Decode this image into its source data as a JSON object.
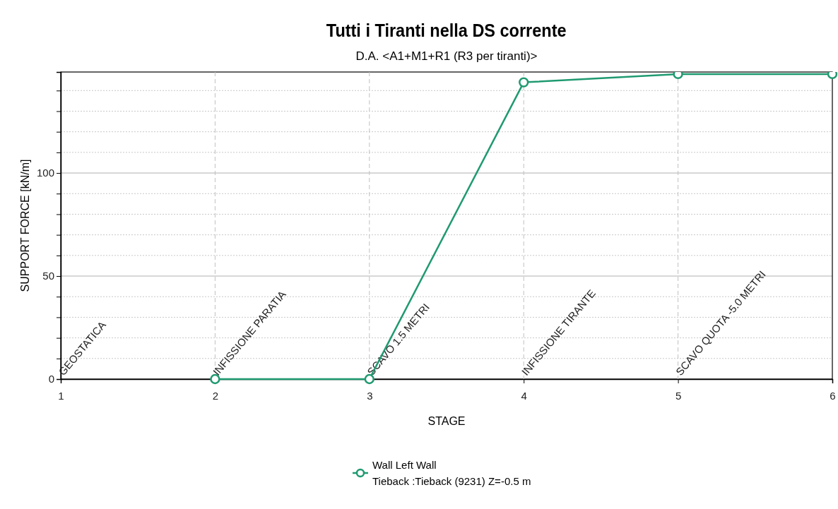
{
  "chart_data": {
    "type": "line",
    "title": "Tutti i Tiranti nella DS corrente",
    "subtitle": "D.A. <A1+M1+R1 (R3 per tiranti)>",
    "xlabel": "STAGE",
    "ylabel": "SUPPORT FORCE [kN/m]",
    "x": [
      2,
      3,
      4,
      5,
      6
    ],
    "series": [
      {
        "name": "Wall Left Wall\nTieback :Tieback (9231) Z=-0.5 m",
        "color": "#1f9a70",
        "values": [
          0,
          0,
          144,
          148,
          148
        ]
      }
    ],
    "xlim": [
      1,
      6
    ],
    "xticks": [
      1,
      2,
      3,
      4,
      5,
      6
    ],
    "ylim": [
      0,
      149
    ],
    "yticks": [
      0,
      {
        "value": 10,
        "label": null
      },
      {
        "value": 20,
        "label": null
      },
      {
        "value": 30,
        "label": null
      },
      {
        "value": 40,
        "label": null
      },
      50,
      {
        "value": 60,
        "label": null
      },
      {
        "value": 70,
        "label": null
      },
      {
        "value": 80,
        "label": null
      },
      {
        "value": 90,
        "label": null
      },
      100,
      {
        "value": 110,
        "label": null
      },
      {
        "value": 120,
        "label": null
      },
      {
        "value": 130,
        "label": null
      },
      {
        "value": 140,
        "label": null
      }
    ],
    "annotations": [
      "GEOSTATICA"
    ],
    "ref_lines": [
      {
        "axis": "x",
        "value": 2,
        "label": "INFISSIONE PARATIA"
      },
      {
        "axis": "x",
        "value": 3,
        "label": "SCAVO 1.5 METRI"
      },
      {
        "axis": "x",
        "value": 4,
        "label": "INFISSIONE TIRANTE"
      },
      {
        "axis": "x",
        "value": 5,
        "label": "SCAVO QUOTA -5.0 METRI"
      }
    ],
    "grid": "y",
    "legend": "bottom",
    "marker": "circle",
    "line_style": "solid"
  }
}
